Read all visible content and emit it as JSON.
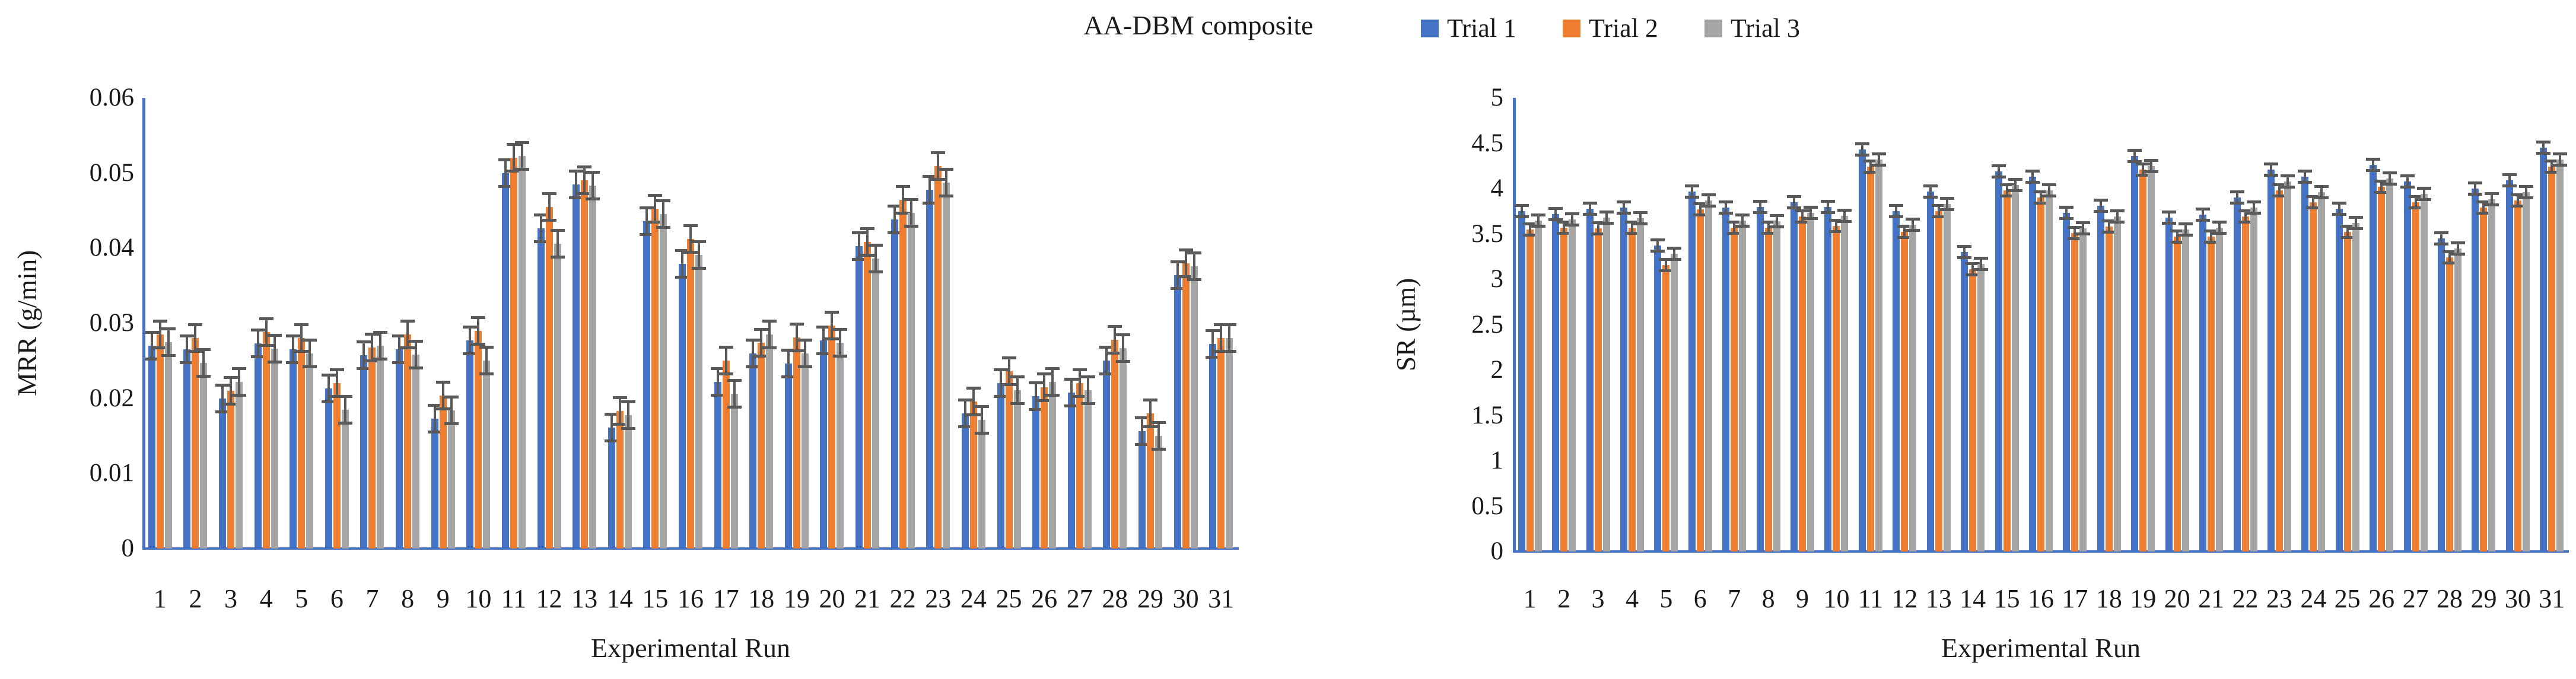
{
  "title": "AA-DBM composite",
  "legend": {
    "items": [
      {
        "label": "Trial 1",
        "color": "#4472C4"
      },
      {
        "label": "Trial 2",
        "color": "#ED7D31"
      },
      {
        "label": "Trial 3",
        "color": "#A5A5A5"
      }
    ]
  },
  "chart_data": [
    {
      "type": "bar",
      "xlabel": "Experimental Run",
      "ylabel": "MRR (g/min)",
      "ylim": [
        0,
        0.06
      ],
      "grid": false,
      "legend_position": "top",
      "axis_color": "#4472C4",
      "error_color": "#595959",
      "error_bar": 0.002,
      "yticks": {
        "values": [
          0,
          0.01,
          0.02,
          0.03,
          0.04,
          0.05,
          0.06
        ],
        "labels": [
          "0",
          "0.01",
          "0.02",
          "0.03",
          "0.04",
          "0.05",
          "0.06"
        ]
      },
      "categories": [
        "1",
        "2",
        "3",
        "4",
        "5",
        "6",
        "7",
        "8",
        "9",
        "10",
        "11",
        "12",
        "13",
        "14",
        "15",
        "16",
        "17",
        "18",
        "19",
        "20",
        "21",
        "22",
        "23",
        "24",
        "25",
        "26",
        "27",
        "28",
        "29",
        "30",
        "31"
      ],
      "series": [
        {
          "name": "Trial 1",
          "color": "#4472C4",
          "values": [
            0.027,
            0.0265,
            0.02,
            0.0273,
            0.0265,
            0.0213,
            0.0257,
            0.0265,
            0.0173,
            0.0277,
            0.05,
            0.0426,
            0.0485,
            0.0161,
            0.0436,
            0.0379,
            0.0222,
            0.026,
            0.0246,
            0.0277,
            0.0403,
            0.0438,
            0.0478,
            0.018,
            0.022,
            0.0203,
            0.0208,
            0.025,
            0.0156,
            0.0364,
            0.0272
          ]
        },
        {
          "name": "Trial 2",
          "color": "#ED7D31",
          "values": [
            0.0285,
            0.028,
            0.021,
            0.0288,
            0.028,
            0.022,
            0.0268,
            0.0285,
            0.0204,
            0.029,
            0.052,
            0.0455,
            0.049,
            0.0183,
            0.0452,
            0.0412,
            0.025,
            0.0274,
            0.0281,
            0.0297,
            0.0408,
            0.0464,
            0.0509,
            0.0196,
            0.0236,
            0.0215,
            0.022,
            0.0278,
            0.018,
            0.038,
            0.028
          ]
        },
        {
          "name": "Trial 3",
          "color": "#A5A5A5",
          "values": [
            0.0275,
            0.0247,
            0.0222,
            0.0266,
            0.026,
            0.0185,
            0.027,
            0.0258,
            0.0184,
            0.025,
            0.0523,
            0.0406,
            0.0483,
            0.0178,
            0.0445,
            0.0391,
            0.0206,
            0.0285,
            0.026,
            0.0274,
            0.0386,
            0.0447,
            0.0487,
            0.0171,
            0.0211,
            0.0222,
            0.0211,
            0.0267,
            0.015,
            0.0376,
            0.028
          ]
        }
      ]
    },
    {
      "type": "bar",
      "xlabel": "Experimental Run",
      "ylabel": "SR (µm)",
      "ylim": [
        0,
        5
      ],
      "grid": false,
      "legend_position": "top",
      "axis_color": "#4472C4",
      "error_color": "#595959",
      "error_bar": 0.08,
      "yticks": {
        "values": [
          0,
          0.5,
          1,
          1.5,
          2,
          2.5,
          3,
          3.5,
          4,
          4.5,
          5
        ],
        "labels": [
          "0",
          "0.5",
          "1",
          "1.5",
          "2",
          "2.5",
          "3",
          "3.5",
          "4",
          "4.5",
          "5"
        ]
      },
      "categories": [
        "1",
        "2",
        "3",
        "4",
        "5",
        "6",
        "7",
        "8",
        "9",
        "10",
        "11",
        "12",
        "13",
        "14",
        "15",
        "16",
        "17",
        "18",
        "19",
        "20",
        "21",
        "22",
        "23",
        "24",
        "25",
        "26",
        "27",
        "28",
        "29",
        "30",
        "31"
      ],
      "series": [
        {
          "name": "Trial 1",
          "color": "#4472C4",
          "values": [
            3.75,
            3.72,
            3.78,
            3.79,
            3.37,
            3.97,
            3.79,
            3.8,
            3.85,
            3.8,
            4.43,
            3.75,
            3.97,
            3.3,
            4.19,
            4.13,
            3.73,
            3.81,
            4.36,
            3.68,
            3.71,
            3.9,
            4.21,
            4.13,
            3.78,
            4.26,
            4.08,
            3.45,
            4.0,
            4.09,
            4.45
          ]
        },
        {
          "name": "Trial 2",
          "color": "#ED7D31",
          "values": [
            3.55,
            3.57,
            3.56,
            3.57,
            3.16,
            3.77,
            3.57,
            3.57,
            3.69,
            3.59,
            4.24,
            3.52,
            3.75,
            3.11,
            3.98,
            3.9,
            3.51,
            3.58,
            4.21,
            3.47,
            3.47,
            3.69,
            3.98,
            3.85,
            3.52,
            4.02,
            3.85,
            3.24,
            3.79,
            3.87,
            4.24
          ]
        },
        {
          "name": "Trial 3",
          "color": "#A5A5A5",
          "values": [
            3.65,
            3.66,
            3.68,
            3.67,
            3.28,
            3.87,
            3.65,
            3.64,
            3.73,
            3.7,
            4.32,
            3.6,
            3.83,
            3.17,
            4.04,
            3.98,
            3.56,
            3.69,
            4.25,
            3.55,
            3.57,
            3.79,
            4.08,
            3.96,
            3.62,
            4.11,
            3.94,
            3.34,
            3.88,
            3.96,
            4.32
          ]
        }
      ]
    }
  ]
}
